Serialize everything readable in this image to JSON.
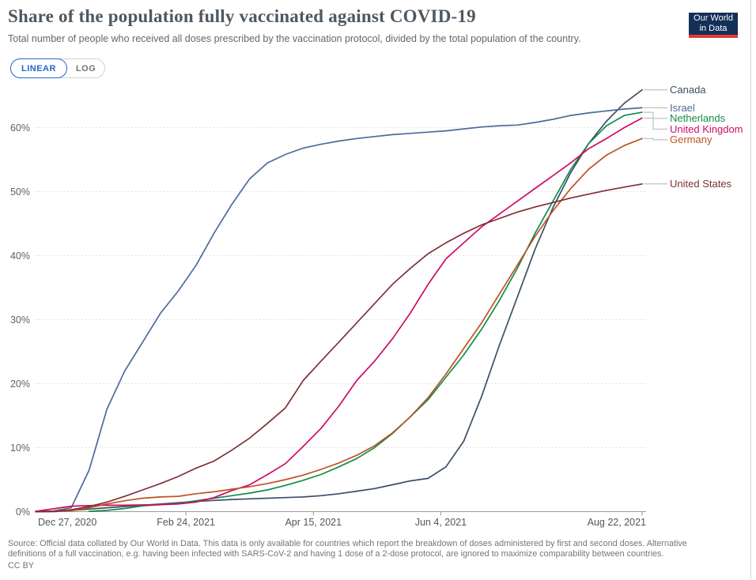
{
  "header": {
    "title": "Share of the population fully vaccinated against COVID-19",
    "subtitle": "Total number of people who received all doses prescribed by the vaccination protocol, divided by the total population of the country.",
    "scale_toggle": {
      "linear_label": "LINEAR",
      "log_label": "LOG",
      "selected": "LINEAR"
    },
    "logo": {
      "line1": "Our World",
      "line2": "in Data",
      "bg_color": "#143059",
      "bar_color": "#E03E2D"
    }
  },
  "footer": {
    "source": "Source: Official data collated by Our World in Data. This data is only available for countries which report the breakdown of doses administered by first and second doses. Alternative definitions of a full vaccination, e.g. having been infected with SARS-CoV-2 and having 1 dose of a 2-dose protocol, are ignored to maximize comparability between countries.",
    "license": "CC BY"
  },
  "ui_colors": {
    "accent_blue": "#2368CF",
    "grid": "#d9d9d9",
    "axis": "#9a9a9a",
    "tick_label": "#616161",
    "connector": "#b4b4b4"
  },
  "chart_data": {
    "type": "line",
    "title": "Share of the population fully vaccinated against COVID-19",
    "ylabel": "",
    "xlabel": "",
    "ylim": [
      0,
      66
    ],
    "yticks": [
      0,
      10,
      20,
      30,
      40,
      50,
      60
    ],
    "ytick_suffix": "%",
    "grid": "dashed-horizontal",
    "legend_position": "right",
    "x_unit": "days since Dec 27, 2020",
    "x_domain_days": [
      0,
      238
    ],
    "x_tick_days": [
      0,
      59,
      109,
      159,
      238
    ],
    "x_tick_labels": [
      "Dec 27, 2020",
      "Feb 24, 2021",
      "Apr 15, 2021",
      "Jun 4, 2021",
      "Aug 22, 2021"
    ],
    "days": [
      0,
      7,
      14,
      21,
      28,
      35,
      42,
      49,
      56,
      63,
      70,
      77,
      84,
      91,
      98,
      105,
      112,
      119,
      126,
      133,
      140,
      147,
      154,
      161,
      168,
      175,
      182,
      189,
      196,
      203,
      210,
      217,
      224,
      231,
      238
    ],
    "series": [
      {
        "name": "Canada",
        "color": "#3C4E66",
        "values": [
          0,
          0.05,
          0.2,
          0.4,
          0.6,
          0.8,
          1.0,
          1.2,
          1.4,
          1.6,
          1.75,
          1.9,
          2.0,
          2.1,
          2.2,
          2.3,
          2.5,
          2.8,
          3.2,
          3.6,
          4.2,
          4.8,
          5.2,
          7,
          11,
          18,
          26,
          33.5,
          41,
          47.5,
          53,
          57.5,
          61,
          63.8,
          65.9
        ]
      },
      {
        "name": "Israel",
        "color": "#4C6A9C",
        "values": [
          0,
          0.1,
          0.6,
          6.5,
          16,
          22,
          26.5,
          31,
          34.5,
          38.5,
          43.5,
          48,
          52,
          54.5,
          55.8,
          56.8,
          57.4,
          57.9,
          58.3,
          58.6,
          58.9,
          59.1,
          59.3,
          59.5,
          59.8,
          60.1,
          60.3,
          60.4,
          60.8,
          61.3,
          61.9,
          62.3,
          62.6,
          62.9,
          63.1
        ]
      },
      {
        "name": "Netherlands",
        "color": "#128C4A",
        "values": [
          null,
          null,
          null,
          0.05,
          0.2,
          0.5,
          0.9,
          1.1,
          1.3,
          1.7,
          2.1,
          2.5,
          2.9,
          3.4,
          4.1,
          4.9,
          5.8,
          7,
          8.3,
          10,
          12.2,
          14.8,
          17.5,
          21,
          24.5,
          28.5,
          33,
          38,
          43.5,
          48.5,
          53.5,
          57.5,
          60.3,
          61.9,
          62.4
        ]
      },
      {
        "name": "United Kingdom",
        "color": "#CF0A66",
        "values": [
          0.05,
          0.45,
          0.85,
          0.95,
          1.0,
          1.0,
          1.05,
          1.1,
          1.2,
          1.5,
          2.2,
          3.3,
          4.2,
          5.8,
          7.5,
          10.2,
          13,
          16.5,
          20.5,
          23.5,
          27,
          31,
          35.5,
          39.5,
          42,
          44.5,
          46.5,
          48.5,
          50.5,
          52.5,
          54.5,
          56.7,
          58.3,
          60,
          61.5
        ]
      },
      {
        "name": "Germany",
        "color": "#BF5221",
        "values": [
          0,
          0,
          0.15,
          0.6,
          1.2,
          1.7,
          2.1,
          2.3,
          2.4,
          2.8,
          3.1,
          3.5,
          3.9,
          4.4,
          5,
          5.7,
          6.6,
          7.6,
          8.8,
          10.3,
          12.3,
          14.8,
          17.8,
          21.5,
          25.5,
          29.5,
          34,
          38.5,
          43,
          47,
          50.5,
          53.5,
          55.7,
          57.2,
          58.3
        ]
      },
      {
        "name": "United States",
        "color": "#7F3036",
        "values": [
          0,
          0.05,
          0.3,
          0.8,
          1.5,
          2.4,
          3.4,
          4.4,
          5.5,
          6.8,
          7.9,
          9.6,
          11.5,
          13.8,
          16.2,
          20.5,
          23.5,
          26.5,
          29.5,
          32.5,
          35.5,
          38,
          40.3,
          42,
          43.5,
          44.8,
          45.8,
          46.8,
          47.6,
          48.3,
          49,
          49.6,
          50.2,
          50.7,
          51.2
        ]
      }
    ]
  }
}
